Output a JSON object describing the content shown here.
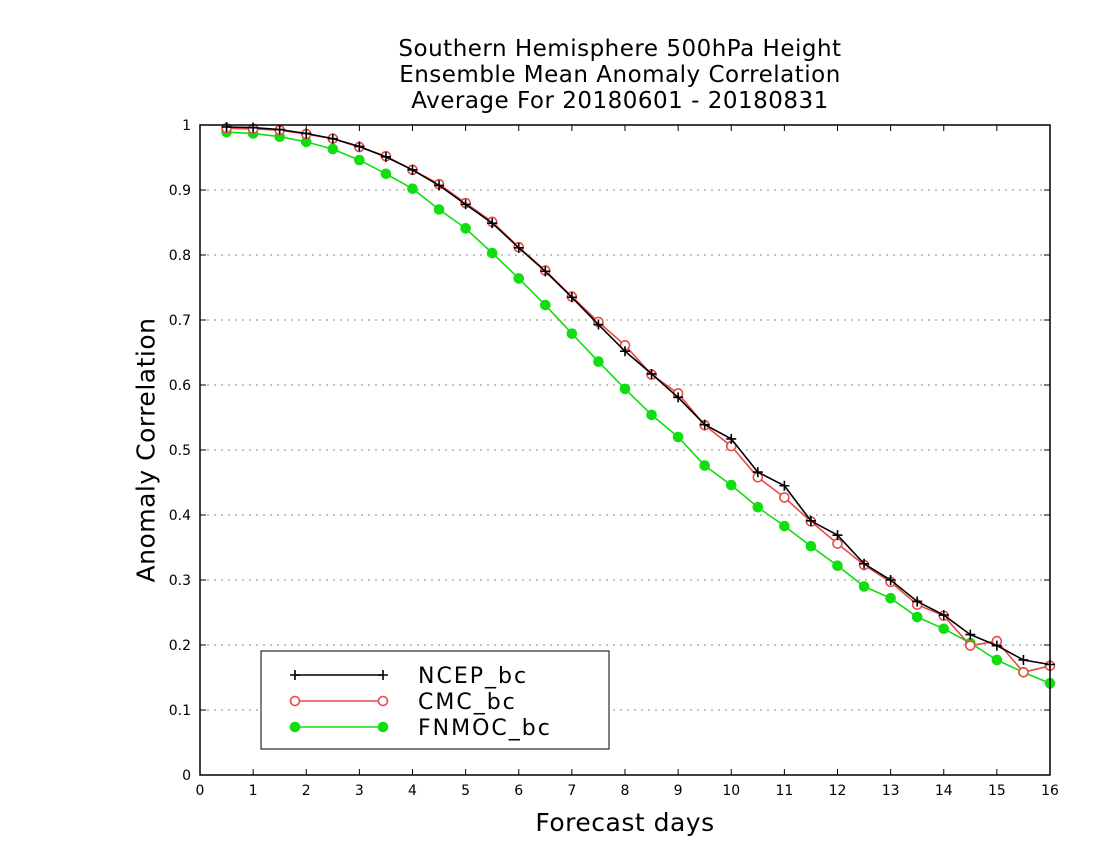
{
  "chart_data": {
    "type": "line",
    "title": [
      "Southern Hemisphere 500hPa Height",
      "Ensemble Mean Anomaly Correlation",
      "Average For 20180601 - 20180831"
    ],
    "xlabel": "Forecast days",
    "ylabel": "Anomaly Correlation",
    "xlim": [
      0,
      16
    ],
    "ylim": [
      0,
      1
    ],
    "xticks": [
      "0",
      "1",
      "2",
      "3",
      "4",
      "5",
      "6",
      "7",
      "8",
      "9",
      "10",
      "11",
      "12",
      "13",
      "14",
      "15",
      "16"
    ],
    "yticks": [
      "0",
      "0.1",
      "0.2",
      "0.3",
      "0.4",
      "0.5",
      "0.6",
      "0.7",
      "0.8",
      "0.9",
      "1"
    ],
    "grid": "horizontal dotted",
    "legend_position": "bottom-left",
    "x": [
      0.5,
      1,
      1.5,
      2,
      2.5,
      3,
      3.5,
      4,
      4.5,
      5,
      5.5,
      6,
      6.5,
      7,
      7.5,
      8,
      8.5,
      9,
      9.5,
      10,
      10.5,
      11,
      11.5,
      12,
      12.5,
      13,
      13.5,
      14,
      14.5,
      15,
      15.5,
      16
    ],
    "series": [
      {
        "name": "NCEP_bc",
        "color": "#000000",
        "marker": "plus",
        "values": [
          0.997,
          0.996,
          0.993,
          0.987,
          0.979,
          0.967,
          0.951,
          0.931,
          0.907,
          0.878,
          0.849,
          0.811,
          0.775,
          0.735,
          0.693,
          0.652,
          0.617,
          0.581,
          0.539,
          0.517,
          0.466,
          0.445,
          0.391,
          0.369,
          0.325,
          0.3,
          0.267,
          0.246,
          0.216,
          0.199,
          0.177,
          0.17
        ]
      },
      {
        "name": "CMC_bc",
        "color": "#e84a4a",
        "marker": "open-circle",
        "values": [
          0.995,
          0.994,
          0.992,
          0.986,
          0.979,
          0.966,
          0.952,
          0.931,
          0.909,
          0.88,
          0.851,
          0.812,
          0.776,
          0.736,
          0.697,
          0.661,
          0.616,
          0.587,
          0.538,
          0.506,
          0.458,
          0.427,
          0.39,
          0.356,
          0.323,
          0.297,
          0.262,
          0.245,
          0.199,
          0.206,
          0.158,
          0.168
        ]
      },
      {
        "name": "FNMOC_bc",
        "color": "#11dd11",
        "marker": "filled-circle",
        "values": [
          0.989,
          0.987,
          0.982,
          0.974,
          0.963,
          0.946,
          0.925,
          0.902,
          0.87,
          0.841,
          0.803,
          0.764,
          0.723,
          0.679,
          0.636,
          0.594,
          0.554,
          0.52,
          0.476,
          0.446,
          0.412,
          0.383,
          0.352,
          0.322,
          0.29,
          0.272,
          0.243,
          0.225,
          0.203,
          0.177,
          0.158,
          0.141
        ]
      }
    ]
  }
}
